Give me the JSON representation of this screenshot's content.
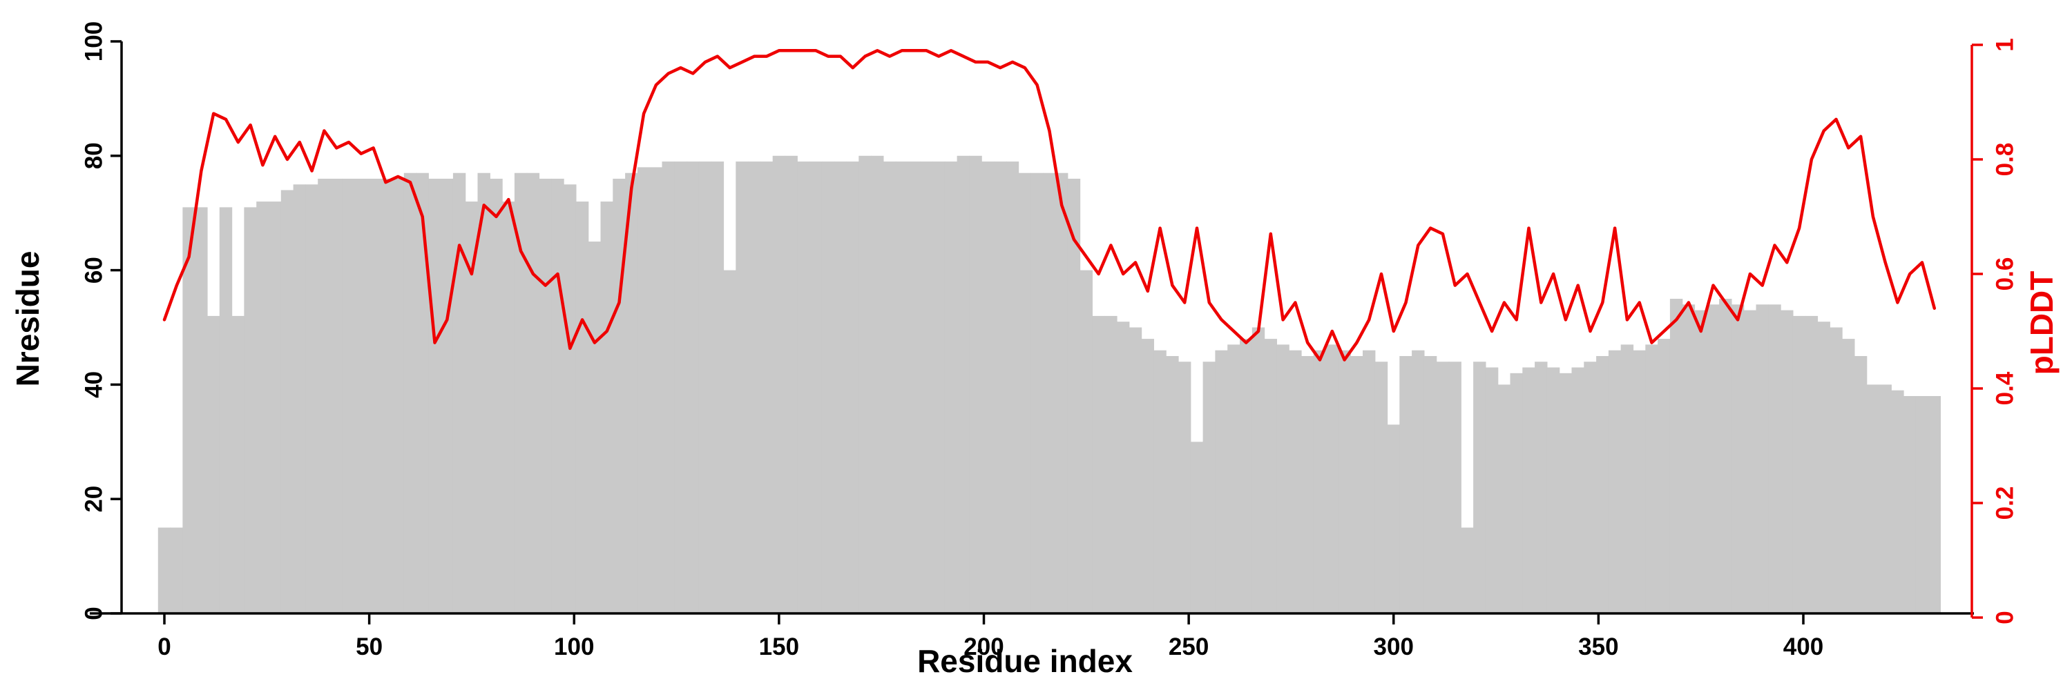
{
  "figure": {
    "background": "#ffffff"
  },
  "chart_data": {
    "type": "bar",
    "subtype": "bar+line-dual-axis",
    "title": "",
    "xlabel": "Residue index",
    "ylabel": "Nresidue",
    "y2label": "pLDDT",
    "xlim": [
      0,
      440
    ],
    "ylim": [
      0,
      100
    ],
    "y2lim": [
      0,
      1
    ],
    "grid": false,
    "legend": "none",
    "axis_color": "#000000",
    "y2_axis_color": "#ee0000",
    "x_ticks": [
      "0",
      "50",
      "100",
      "150",
      "200",
      "250",
      "300",
      "350",
      "400"
    ],
    "y_ticks": [
      "0",
      "20",
      "40",
      "60",
      "80",
      "100"
    ],
    "y2_ticks": [
      "0",
      "0.2",
      "0.4",
      "0.6",
      "0.8",
      "1"
    ],
    "x": [
      0,
      3,
      6,
      9,
      12,
      15,
      18,
      21,
      24,
      27,
      30,
      33,
      36,
      39,
      42,
      45,
      48,
      51,
      54,
      57,
      60,
      63,
      66,
      69,
      72,
      75,
      78,
      81,
      84,
      87,
      90,
      93,
      96,
      99,
      102,
      105,
      108,
      111,
      114,
      117,
      120,
      123,
      126,
      129,
      132,
      135,
      138,
      141,
      144,
      147,
      150,
      153,
      156,
      159,
      162,
      165,
      168,
      171,
      174,
      177,
      180,
      183,
      186,
      189,
      192,
      195,
      198,
      201,
      204,
      207,
      210,
      213,
      216,
      219,
      222,
      225,
      228,
      231,
      234,
      237,
      240,
      243,
      246,
      249,
      252,
      255,
      258,
      261,
      264,
      267,
      270,
      273,
      276,
      279,
      282,
      285,
      288,
      291,
      294,
      297,
      300,
      303,
      306,
      309,
      312,
      315,
      318,
      321,
      324,
      327,
      330,
      333,
      336,
      339,
      342,
      345,
      348,
      351,
      354,
      357,
      360,
      363,
      366,
      369,
      372,
      375,
      378,
      381,
      384,
      387,
      390,
      393,
      396,
      399,
      402,
      405,
      408,
      411,
      414,
      417,
      420,
      423,
      426,
      429,
      432
    ],
    "series": [
      {
        "name": "Nresidue",
        "type": "bar",
        "axis": "left",
        "color": "#c9c9c9",
        "values": [
          15,
          15,
          71,
          71,
          52,
          71,
          52,
          71,
          72,
          72,
          74,
          75,
          75,
          76,
          76,
          76,
          76,
          76,
          76,
          76,
          77,
          77,
          76,
          76,
          77,
          72,
          77,
          76,
          72,
          77,
          77,
          76,
          76,
          75,
          72,
          65,
          72,
          76,
          77,
          78,
          78,
          79,
          79,
          79,
          79,
          79,
          60,
          79,
          79,
          79,
          80,
          80,
          79,
          79,
          79,
          79,
          79,
          80,
          80,
          79,
          79,
          79,
          79,
          79,
          79,
          80,
          80,
          79,
          79,
          79,
          77,
          77,
          77,
          77,
          76,
          60,
          52,
          52,
          51,
          50,
          48,
          46,
          45,
          44,
          30,
          44,
          46,
          47,
          48,
          50,
          48,
          47,
          46,
          45,
          46,
          47,
          46,
          45,
          46,
          44,
          33,
          45,
          46,
          45,
          44,
          44,
          15,
          44,
          43,
          40,
          42,
          43,
          44,
          43,
          42,
          43,
          44,
          45,
          46,
          47,
          46,
          47,
          48,
          55,
          54,
          53,
          54,
          55,
          54,
          53,
          54,
          54,
          53,
          52,
          52,
          51,
          50,
          48,
          45,
          40,
          40,
          39,
          38,
          38,
          38
        ]
      },
      {
        "name": "pLDDT",
        "type": "line",
        "axis": "right",
        "color": "#ee0000",
        "values": [
          0.52,
          0.58,
          0.63,
          0.78,
          0.88,
          0.87,
          0.83,
          0.86,
          0.79,
          0.84,
          0.8,
          0.83,
          0.78,
          0.85,
          0.82,
          0.83,
          0.81,
          0.82,
          0.76,
          0.77,
          0.76,
          0.7,
          0.48,
          0.52,
          0.65,
          0.6,
          0.72,
          0.7,
          0.73,
          0.64,
          0.6,
          0.58,
          0.6,
          0.47,
          0.52,
          0.48,
          0.5,
          0.55,
          0.75,
          0.88,
          0.93,
          0.95,
          0.96,
          0.95,
          0.97,
          0.98,
          0.96,
          0.97,
          0.98,
          0.98,
          0.99,
          0.99,
          0.99,
          0.99,
          0.98,
          0.98,
          0.96,
          0.98,
          0.99,
          0.98,
          0.99,
          0.99,
          0.99,
          0.98,
          0.99,
          0.98,
          0.97,
          0.97,
          0.96,
          0.97,
          0.96,
          0.93,
          0.85,
          0.72,
          0.66,
          0.63,
          0.6,
          0.65,
          0.6,
          0.62,
          0.57,
          0.68,
          0.58,
          0.55,
          0.68,
          0.55,
          0.52,
          0.5,
          0.48,
          0.5,
          0.67,
          0.52,
          0.55,
          0.48,
          0.45,
          0.5,
          0.45,
          0.48,
          0.52,
          0.6,
          0.5,
          0.55,
          0.65,
          0.68,
          0.67,
          0.58,
          0.6,
          0.55,
          0.5,
          0.55,
          0.52,
          0.68,
          0.55,
          0.6,
          0.52,
          0.58,
          0.5,
          0.55,
          0.68,
          0.52,
          0.55,
          0.48,
          0.5,
          0.52,
          0.55,
          0.5,
          0.58,
          0.55,
          0.52,
          0.6,
          0.58,
          0.65,
          0.62,
          0.68,
          0.8,
          0.85,
          0.87,
          0.82,
          0.84,
          0.7,
          0.62,
          0.55,
          0.6,
          0.62,
          0.54
        ]
      }
    ]
  }
}
